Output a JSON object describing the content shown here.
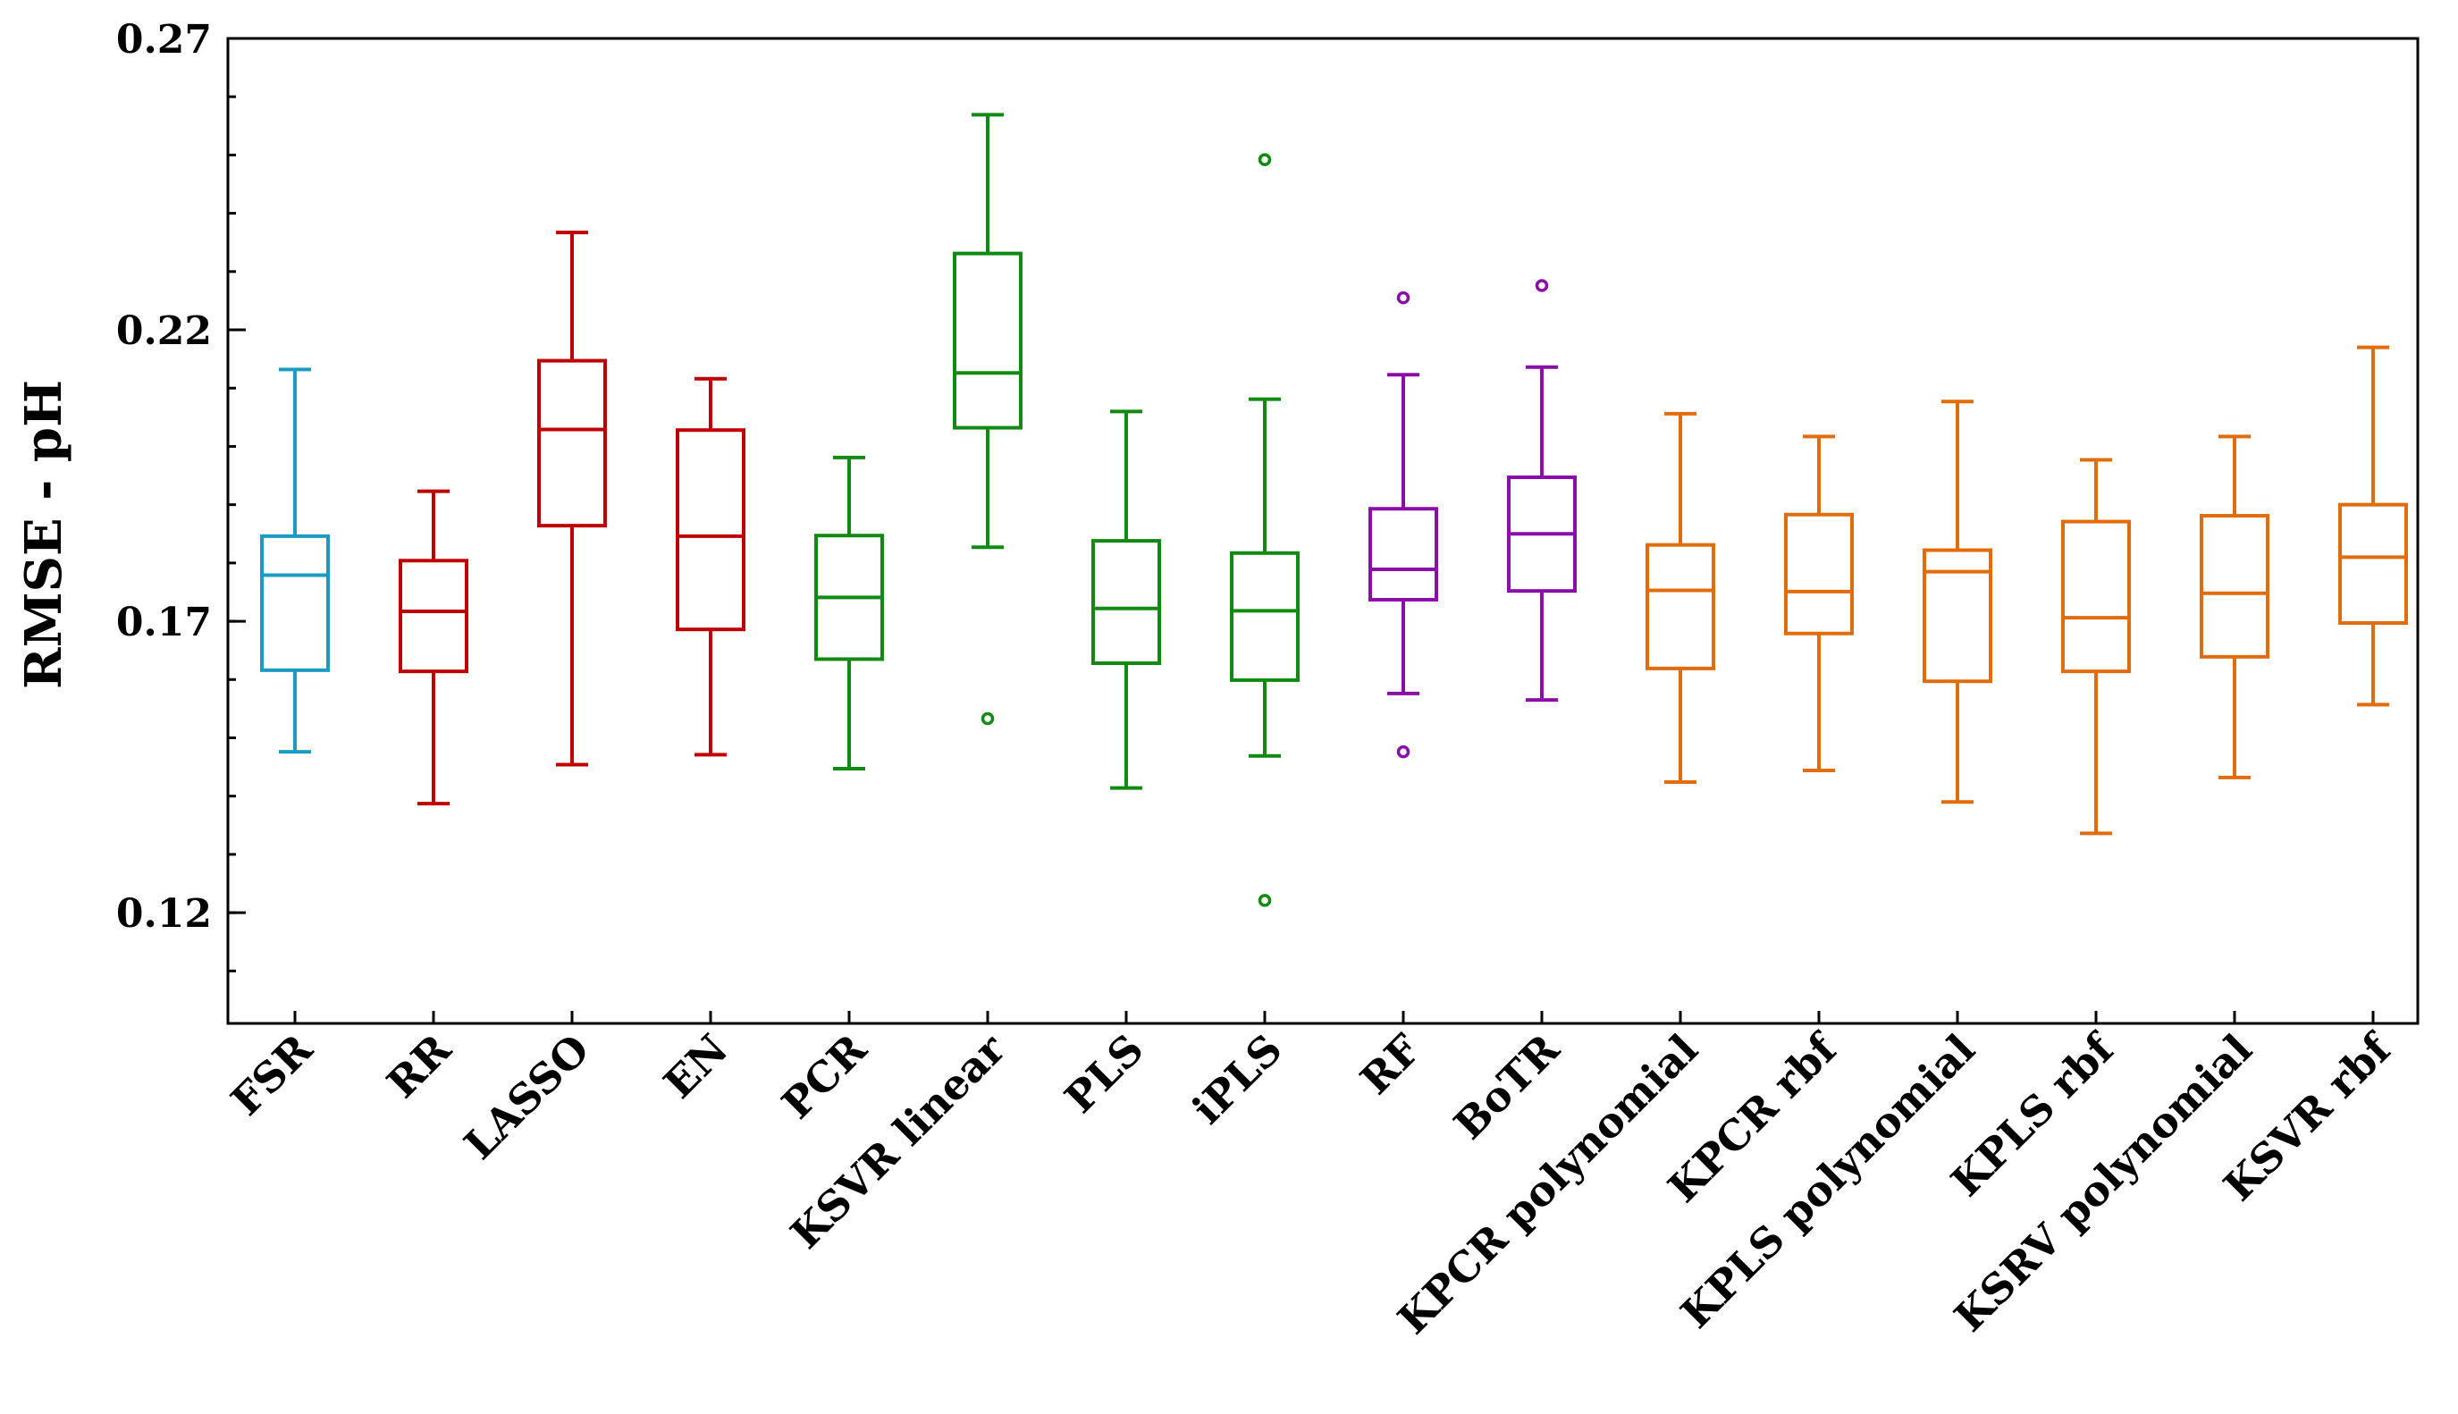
{
  "chart_data": {
    "type": "boxplot",
    "title": "",
    "xlabel": "",
    "ylabel": "RMSE - pH",
    "ylim": [
      0.101,
      0.27
    ],
    "yticks": [
      0.12,
      0.17,
      0.22,
      0.27
    ],
    "ytick_labels": [
      "0.12",
      "0.17",
      "0.22",
      "0.27"
    ],
    "grid": false,
    "categories": [
      "FSR",
      "RR",
      "LASSO",
      "EN",
      "PCR",
      "KSVR linear",
      "PLS",
      "iPLS",
      "RF",
      "BoTR",
      "KPCR polynomial",
      "KPCR rbf",
      "KPLS polynomial",
      "KPLS rbf",
      "KSRV polynomial",
      "KSVR rbf"
    ],
    "colors": [
      "#1a9cc0",
      "#c00000",
      "#c00000",
      "#c00000",
      "#118a11",
      "#118a11",
      "#118a11",
      "#118a11",
      "#8a0fa8",
      "#8a0fa8",
      "#e06c0c",
      "#e06c0c",
      "#e06c0c",
      "#e06c0c",
      "#e06c0c",
      "#e06c0c"
    ],
    "boxes": [
      {
        "name": "FSR",
        "whisker_low": 0.1476,
        "q1": 0.1616,
        "median": 0.1779,
        "q3": 0.1846,
        "whisker_high": 0.2132,
        "outliers": []
      },
      {
        "name": "RR",
        "whisker_low": 0.1387,
        "q1": 0.1614,
        "median": 0.1717,
        "q3": 0.1804,
        "whisker_high": 0.1923,
        "outliers": []
      },
      {
        "name": "LASSO",
        "whisker_low": 0.1454,
        "q1": 0.1864,
        "median": 0.2029,
        "q3": 0.2147,
        "whisker_high": 0.2367,
        "outliers": []
      },
      {
        "name": "EN",
        "whisker_low": 0.1471,
        "q1": 0.1686,
        "median": 0.1846,
        "q3": 0.2028,
        "whisker_high": 0.2116,
        "outliers": []
      },
      {
        "name": "PCR",
        "whisker_low": 0.1447,
        "q1": 0.1635,
        "median": 0.1741,
        "q3": 0.1847,
        "whisker_high": 0.1981,
        "outliers": []
      },
      {
        "name": "KSVR linear",
        "whisker_low": 0.1827,
        "q1": 0.2032,
        "median": 0.2126,
        "q3": 0.2331,
        "whisker_high": 0.2569,
        "outliers": [
          0.1533
        ]
      },
      {
        "name": "PLS",
        "whisker_low": 0.1414,
        "q1": 0.1628,
        "median": 0.1722,
        "q3": 0.1838,
        "whisker_high": 0.206,
        "outliers": []
      },
      {
        "name": "iPLS",
        "whisker_low": 0.1469,
        "q1": 0.1599,
        "median": 0.1718,
        "q3": 0.1817,
        "whisker_high": 0.2081,
        "outliers": [
          0.2492,
          0.1221
        ]
      },
      {
        "name": "RF",
        "whisker_low": 0.1576,
        "q1": 0.1737,
        "median": 0.1789,
        "q3": 0.1893,
        "whisker_high": 0.2123,
        "outliers": [
          0.2255,
          0.1476
        ]
      },
      {
        "name": "BoTR",
        "whisker_low": 0.1565,
        "q1": 0.1752,
        "median": 0.185,
        "q3": 0.1947,
        "whisker_high": 0.2136,
        "outliers": [
          0.2276
        ]
      },
      {
        "name": "KPCR polynomial",
        "whisker_low": 0.1424,
        "q1": 0.1619,
        "median": 0.1753,
        "q3": 0.1831,
        "whisker_high": 0.2056,
        "outliers": []
      },
      {
        "name": "KPCR rbf",
        "whisker_low": 0.1444,
        "q1": 0.1679,
        "median": 0.1751,
        "q3": 0.1883,
        "whisker_high": 0.2017,
        "outliers": []
      },
      {
        "name": "KPLS polynomial",
        "whisker_low": 0.139,
        "q1": 0.1597,
        "median": 0.1785,
        "q3": 0.1822,
        "whisker_high": 0.2077,
        "outliers": []
      },
      {
        "name": "KPLS rbf",
        "whisker_low": 0.1336,
        "q1": 0.1614,
        "median": 0.1706,
        "q3": 0.1871,
        "whisker_high": 0.1977,
        "outliers": []
      },
      {
        "name": "KSRV polynomial",
        "whisker_low": 0.1432,
        "q1": 0.1639,
        "median": 0.1748,
        "q3": 0.1881,
        "whisker_high": 0.2017,
        "outliers": []
      },
      {
        "name": "KSVR rbf",
        "whisker_low": 0.1557,
        "q1": 0.1697,
        "median": 0.181,
        "q3": 0.19,
        "whisker_high": 0.217,
        "outliers": []
      }
    ]
  }
}
